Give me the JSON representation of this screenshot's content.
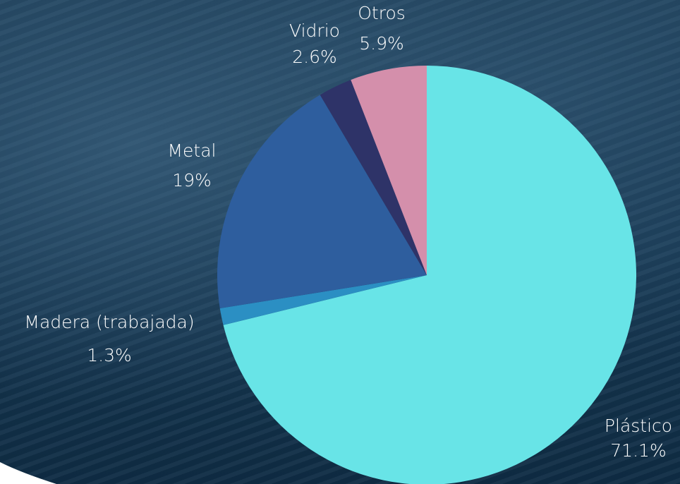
{
  "chart_data": {
    "type": "pie",
    "categories": [
      "Plástico",
      "Madera (trabajada)",
      "Metal",
      "Vidrio",
      "Otros"
    ],
    "values": [
      71.1,
      1.3,
      19,
      2.6,
      5.9
    ],
    "value_labels": [
      "71.1%",
      "1.3%",
      "19%",
      "2.6%",
      "5.9%"
    ],
    "colors": [
      "#68e4e7",
      "#2b8fc3",
      "#2e5e9e",
      "#2e3368",
      "#d48fab"
    ]
  }
}
